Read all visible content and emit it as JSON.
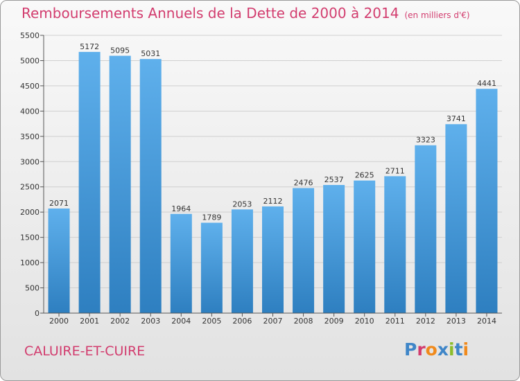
{
  "header": {
    "title": "Remboursements Annuels de la Dette de 2000 à 2014",
    "subtitle": "(en milliers d'€)"
  },
  "footer": {
    "commune": "CALUIRE-ET-CUIRE",
    "logo": "Proxiti"
  },
  "colors": {
    "title": "#d23c6e",
    "bar_light": "#5fb0ec",
    "bar_dark": "#2e7fc0",
    "grid": "#cfcfcf",
    "logo_letters": [
      "#3f86c8",
      "#d23c6e",
      "#f08a1c",
      "#3f86c8",
      "#8cbd2b",
      "#3f86c8",
      "#f08a1c"
    ]
  },
  "chart_data": {
    "type": "bar",
    "title": "Remboursements Annuels de la Dette de 2000 à 2014",
    "subtitle": "(en milliers d'€)",
    "xlabel": "",
    "ylabel": "",
    "categories": [
      "2000",
      "2001",
      "2002",
      "2003",
      "2004",
      "2005",
      "2006",
      "2007",
      "2008",
      "2009",
      "2010",
      "2011",
      "2012",
      "2013",
      "2014"
    ],
    "values": [
      2071,
      5172,
      5095,
      5031,
      1964,
      1789,
      2053,
      2112,
      2476,
      2537,
      2625,
      2711,
      3323,
      3741,
      4441
    ],
    "ylim": [
      0,
      5500
    ],
    "yticks": [
      0,
      500,
      1000,
      1500,
      2000,
      2500,
      3000,
      3500,
      4000,
      4500,
      5000,
      5500
    ],
    "grid": true,
    "data_labels": true
  }
}
